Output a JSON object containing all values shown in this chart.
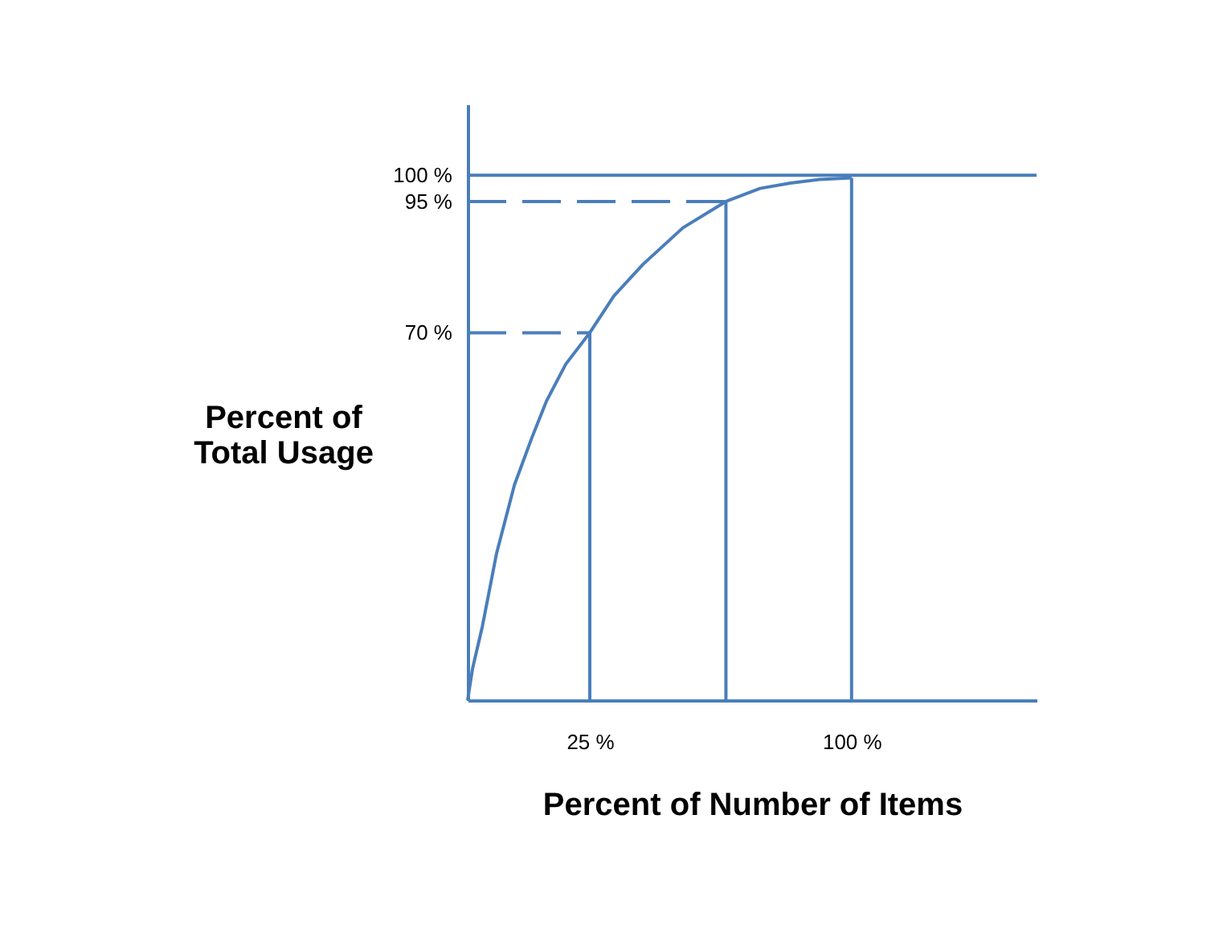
{
  "chart_data": {
    "type": "line",
    "xlabel": "Percent of Number of Items",
    "ylabel": "Percent of\nTotal Usage",
    "xlim": [
      -10,
      153
    ],
    "ylim": [
      0,
      113.5
    ],
    "xticks": [
      {
        "value": 25,
        "label": "25 %"
      },
      {
        "value": 100,
        "label": "100 %"
      }
    ],
    "yticks": [
      {
        "value": 70,
        "label": "70 %"
      },
      {
        "value": 95,
        "label": "95 %"
      },
      {
        "value": 100,
        "label": "100 %"
      }
    ],
    "series": [
      {
        "type": "line",
        "color": "#4a7ebb",
        "x": [
          -10,
          -8.6,
          -5.8,
          -1.7,
          3.4,
          8.4,
          12.6,
          18.1,
          25,
          31.9,
          40.2,
          51.7,
          64,
          73.8,
          82.5,
          90.8,
          100
        ],
        "values": [
          0,
          6,
          14,
          28,
          41,
          50,
          57,
          64,
          70,
          77,
          83,
          90,
          95,
          97.5,
          98.5,
          99.2,
          99.5
        ]
      },
      {
        "type": "line",
        "color": "#4a7ebb",
        "line_style": "dashed",
        "x": [
          -10,
          25
        ],
        "values": [
          70,
          70
        ]
      },
      {
        "type": "line",
        "color": "#4a7ebb",
        "line_style": "dashed",
        "x": [
          -10,
          64
        ],
        "values": [
          95,
          95
        ]
      },
      {
        "type": "line",
        "color": "#4a7ebb",
        "x": [
          25,
          25
        ],
        "values": [
          70,
          0
        ]
      },
      {
        "type": "line",
        "color": "#4a7ebb",
        "x": [
          64,
          64
        ],
        "values": [
          95,
          0
        ]
      },
      {
        "type": "line",
        "color": "#4a7ebb",
        "x": [
          100,
          100
        ],
        "values": [
          99.5,
          0
        ]
      }
    ],
    "ref_lines": [
      {
        "axis": "y",
        "value": 100,
        "color": "#4a7ebb"
      }
    ],
    "grid": false,
    "legend": false,
    "marker": "none",
    "line_style": "solid"
  }
}
